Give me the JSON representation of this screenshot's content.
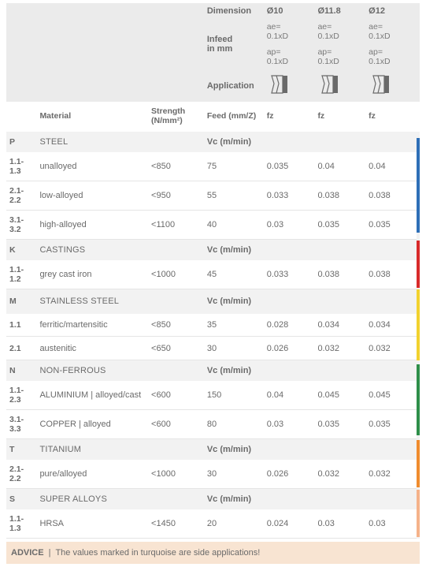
{
  "header": {
    "dimension_label": "Dimension",
    "infeed_label": "Infeed\nin mm",
    "application_label": "Application",
    "diameters": [
      "Ø10",
      "Ø11.8",
      "Ø12"
    ],
    "ae": [
      "ae=\n0.1xD",
      "ae=\n0.1xD",
      "ae=\n0.1xD"
    ],
    "ap": [
      "ap=\n0.1xD",
      "ap=\n0.1xD",
      "ap=\n0.1xD"
    ],
    "material_label": "Material",
    "strength_label": "Strength\n(N/mm²)",
    "feed_label": "Feed (mm/Z)",
    "fz_label": "fz"
  },
  "vc_label": "Vc (m/min)",
  "groups": [
    {
      "code": "P",
      "name": "STEEL",
      "stripe": "#2e6fb7",
      "rows": [
        {
          "code": "1.1-1.3",
          "mat": "unalloyed",
          "str": "<850",
          "vc": "75",
          "fz": [
            "0.035",
            "0.04",
            "0.04"
          ]
        },
        {
          "code": "2.1-2.2",
          "mat": "low-alloyed",
          "str": "<950",
          "vc": "55",
          "fz": [
            "0.033",
            "0.038",
            "0.038"
          ]
        },
        {
          "code": "3.1-3.2",
          "mat": "high-alloyed",
          "str": "<1100",
          "vc": "40",
          "fz": [
            "0.03",
            "0.035",
            "0.035"
          ]
        }
      ]
    },
    {
      "code": "K",
      "name": "CASTINGS",
      "stripe": "#d82a2a",
      "rows": [
        {
          "code": "1.1-1.2",
          "mat": "grey cast iron",
          "str": "<1000",
          "vc": "45",
          "fz": [
            "0.033",
            "0.038",
            "0.038"
          ]
        }
      ]
    },
    {
      "code": "M",
      "name": "STAINLESS STEEL",
      "stripe": "#f2d22e",
      "rows": [
        {
          "code": "1.1",
          "mat": "ferritic/martensitic",
          "str": "<850",
          "vc": "35",
          "fz": [
            "0.028",
            "0.034",
            "0.034"
          ]
        },
        {
          "code": "2.1",
          "mat": "austenitic",
          "str": "<650",
          "vc": "30",
          "fz": [
            "0.026",
            "0.032",
            "0.032"
          ]
        }
      ]
    },
    {
      "code": "N",
      "name": "NON-FERROUS",
      "stripe": "#2e8f4a",
      "rows": [
        {
          "code": "1.1-2.3",
          "mat": "ALUMINIUM | alloyed/cast",
          "str": "<600",
          "vc": "150",
          "fz": [
            "0.04",
            "0.045",
            "0.045"
          ]
        },
        {
          "code": "3.1-3.3",
          "mat": "COPPER | alloyed",
          "str": "<600",
          "vc": "80",
          "fz": [
            "0.03",
            "0.035",
            "0.035"
          ]
        }
      ]
    },
    {
      "code": "T",
      "name": "TITANIUM",
      "stripe": "#f08c2e",
      "rows": [
        {
          "code": "2.1-2.2",
          "mat": "pure/alloyed",
          "str": "<1000",
          "vc": "30",
          "fz": [
            "0.026",
            "0.032",
            "0.032"
          ]
        }
      ]
    },
    {
      "code": "S",
      "name": "SUPER ALLOYS",
      "stripe": "#f5b28a",
      "rows": [
        {
          "code": "1.1-1.3",
          "mat": "HRSA",
          "str": "<1450",
          "vc": "20",
          "fz": [
            "0.024",
            "0.03",
            "0.03"
          ]
        }
      ]
    }
  ],
  "advice": {
    "label": "ADVICE",
    "text": "The values marked in turquoise are side applications!"
  },
  "colors": {
    "header_bg": "#ebebeb",
    "group_bg": "#f2f2f2",
    "advice_bg": "#f8e4d2",
    "text": "#6a6a6a",
    "border": "#e5e5e5"
  }
}
